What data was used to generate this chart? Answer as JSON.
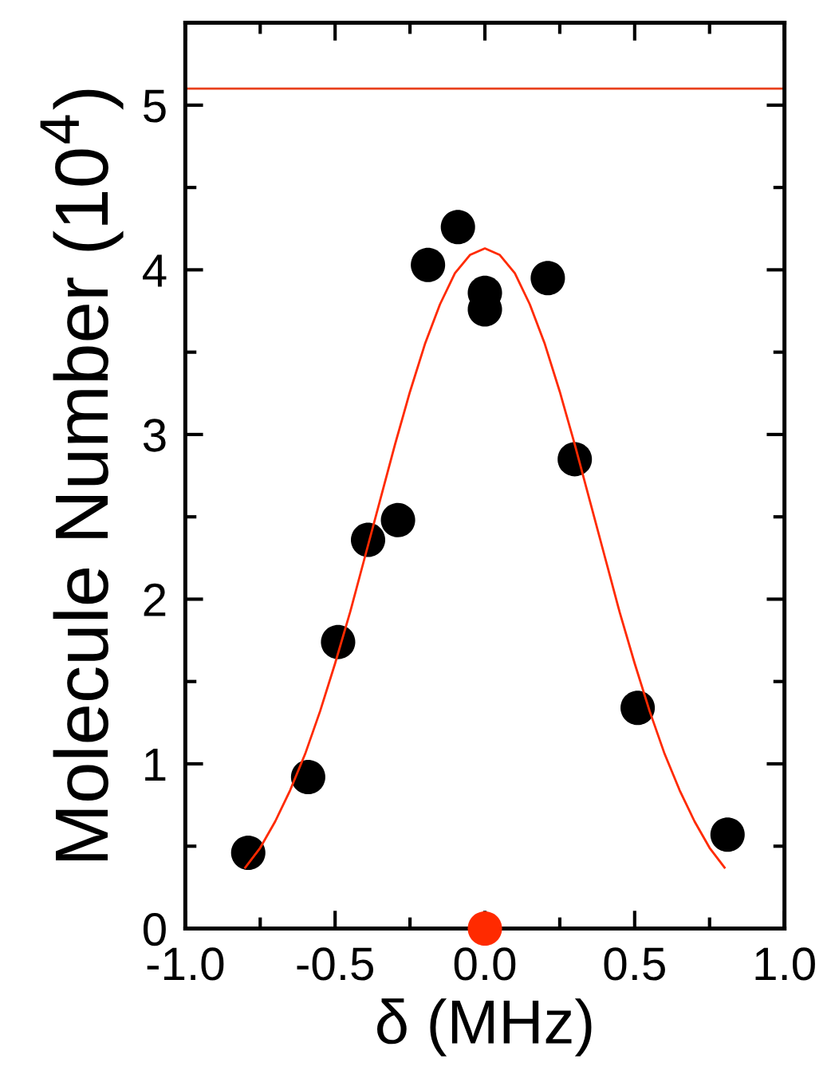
{
  "chart_data": {
    "type": "scatter",
    "xlabel": "δ (MHz)",
    "ylabel": "Molecule Number (10$^{4}$)",
    "xlim": [
      -1.0,
      1.0
    ],
    "ylim": [
      0,
      5.5
    ],
    "xticks": [
      {
        "value": -1.0,
        "label": "-1.0"
      },
      {
        "value": -0.5,
        "label": "-0.5"
      },
      {
        "value": 0.0,
        "label": "0.0"
      },
      {
        "value": 0.5,
        "label": "0.5"
      },
      {
        "value": 1.0,
        "label": "1.0"
      }
    ],
    "yticks": [
      0,
      1,
      2,
      3,
      4,
      5
    ],
    "grid": false,
    "legend": false,
    "marker": "circle",
    "ref_lines": [
      {
        "axis": "y",
        "value": 5.1,
        "color": "#e8401c",
        "line_style": "solid"
      }
    ],
    "series": [
      {
        "type": "line",
        "color": "#ff2a00",
        "marker": "none",
        "line_style": "solid",
        "x": [
          -0.8,
          -0.75,
          -0.7,
          -0.65,
          -0.6,
          -0.55,
          -0.5,
          -0.45,
          -0.4,
          -0.35,
          -0.3,
          -0.25,
          -0.2,
          -0.15,
          -0.1,
          -0.05,
          0,
          0.05,
          0.1,
          0.15,
          0.2,
          0.25,
          0.3,
          0.35,
          0.4,
          0.45,
          0.5,
          0.55,
          0.6,
          0.65,
          0.7,
          0.75,
          0.8
        ],
        "values": [
          0.37,
          0.49,
          0.65,
          0.84,
          1.06,
          1.32,
          1.61,
          1.92,
          2.26,
          2.6,
          2.94,
          3.26,
          3.55,
          3.79,
          3.98,
          4.09,
          4.13,
          4.09,
          3.98,
          3.79,
          3.55,
          3.26,
          2.94,
          2.6,
          2.26,
          1.92,
          1.61,
          1.32,
          1.06,
          0.84,
          0.65,
          0.49,
          0.37
        ]
      },
      {
        "color": "#000000",
        "x": [
          -0.79,
          -0.59,
          -0.49,
          -0.39,
          -0.29,
          -0.19,
          -0.09,
          0.0,
          0.0,
          0.21,
          0.3,
          0.51,
          0.81
        ],
        "values": [
          0.46,
          0.92,
          1.74,
          2.36,
          2.48,
          4.03,
          4.26,
          3.86,
          3.76,
          3.95,
          2.85,
          1.34,
          0.57
        ]
      },
      {
        "color": "#ff2a00",
        "x": [
          0.0
        ],
        "values": [
          0.0
        ]
      }
    ]
  }
}
